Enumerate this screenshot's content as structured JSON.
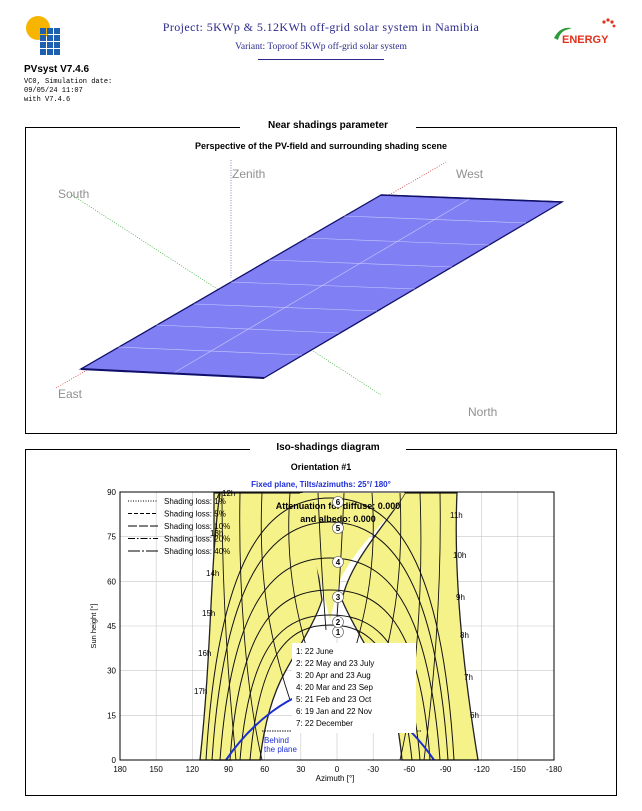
{
  "header": {
    "app_name": "PVsyst V7.4.6",
    "meta_lines": [
      "VC0, Simulation date:",
      "09/05/24 11:07",
      "with V7.4.6"
    ],
    "project_title": "Project: 5KWp & 5.12KWh off-grid solar system in Namibia",
    "variant": "Variant: Toproof 5KWp off-grid solar system",
    "brand": "ENERGY"
  },
  "near_shadings": {
    "section_title": "Near shadings parameter",
    "subtitle": "Perspective of the PV-field and surrounding shading scene",
    "labels": {
      "zenith": "Zenith",
      "west": "West",
      "south": "South",
      "east": "East",
      "north": "North"
    },
    "colors": {
      "pv_panel": "#8080f4",
      "panel_edge": "#10106a"
    }
  },
  "iso_shadings": {
    "section_title": "Iso-shadings diagram",
    "subtitle": "Orientation #1",
    "params": "Fixed plane, Tilts/azimuths: 25°/ 180°",
    "attenuation_line1": "Attenuation for diffuse: 0.000",
    "attenuation_line2": "and albedo: 0.000",
    "behind_line1": "Behind",
    "behind_line2": "the plane",
    "legend": [
      {
        "label": "Shading loss: 1%",
        "style": "1,1.5"
      },
      {
        "label": "Shading loss: 5%",
        "style": "4,2"
      },
      {
        "label": "Shading loss: 10%",
        "style": "9,2"
      },
      {
        "label": "Shading loss: 20%",
        "style": "7,2,1.5,2"
      },
      {
        "label": "Shading loss: 40%",
        "style": "12,2,2,2"
      }
    ],
    "date_legend": [
      "1: 22 June",
      "2: 22 May and 23 July",
      "3: 20 Apr and 23 Aug",
      "4: 20 Mar and 23 Sep",
      "5: 21 Feb and 23 Oct",
      "6: 19 Jan and 22 Nov",
      "7: 22 December"
    ],
    "hour_labels_right": [
      "6h",
      "7h",
      "8h",
      "9h",
      "10h",
      "11h"
    ],
    "hour_labels_left": [
      "17h",
      "16h",
      "15h",
      "14h",
      "13h",
      "12h"
    ],
    "colors": {
      "shade_zone": "#f6f28a",
      "sun_path_below": "#1b2fcf",
      "series_text": "#1e2fd6"
    }
  },
  "chart_data": {
    "type": "line",
    "title": "Iso-shadings diagram",
    "xlabel": "Azimuth [°]",
    "ylabel": "Sun height [°]",
    "xlim": [
      180,
      -180
    ],
    "ylim": [
      0,
      90
    ],
    "x_ticks": [
      180,
      150,
      120,
      90,
      60,
      30,
      0,
      -30,
      -60,
      -90,
      -120,
      -150,
      -180
    ],
    "y_ticks": [
      0,
      15,
      30,
      45,
      60,
      75,
      90
    ],
    "grid": true,
    "series": [
      {
        "name": "1: 22 June",
        "azimuth": [
          63,
          56,
          47,
          33,
          14,
          0,
          -14,
          -33,
          -47,
          -56,
          -63
        ],
        "height": [
          0,
          12,
          23,
          33,
          40,
          42,
          40,
          33,
          23,
          12,
          0
        ]
      },
      {
        "name": "4: 20 Mar and 23 Sep",
        "azimuth": [
          90,
          88,
          85,
          80,
          70,
          45,
          0,
          -45,
          -70,
          -80,
          -85,
          -88,
          -90
        ],
        "height": [
          0,
          14,
          28,
          42,
          55,
          67,
          73,
          67,
          55,
          42,
          28,
          14,
          0
        ]
      },
      {
        "name": "7: 22 December",
        "azimuth": [
          115,
          108,
          100,
          92,
          80,
          50,
          0,
          -50,
          -80,
          -92,
          -100,
          -108,
          -115
        ],
        "height": [
          0,
          14,
          28,
          42,
          56,
          75,
          85,
          75,
          56,
          42,
          28,
          14,
          0
        ]
      }
    ]
  }
}
